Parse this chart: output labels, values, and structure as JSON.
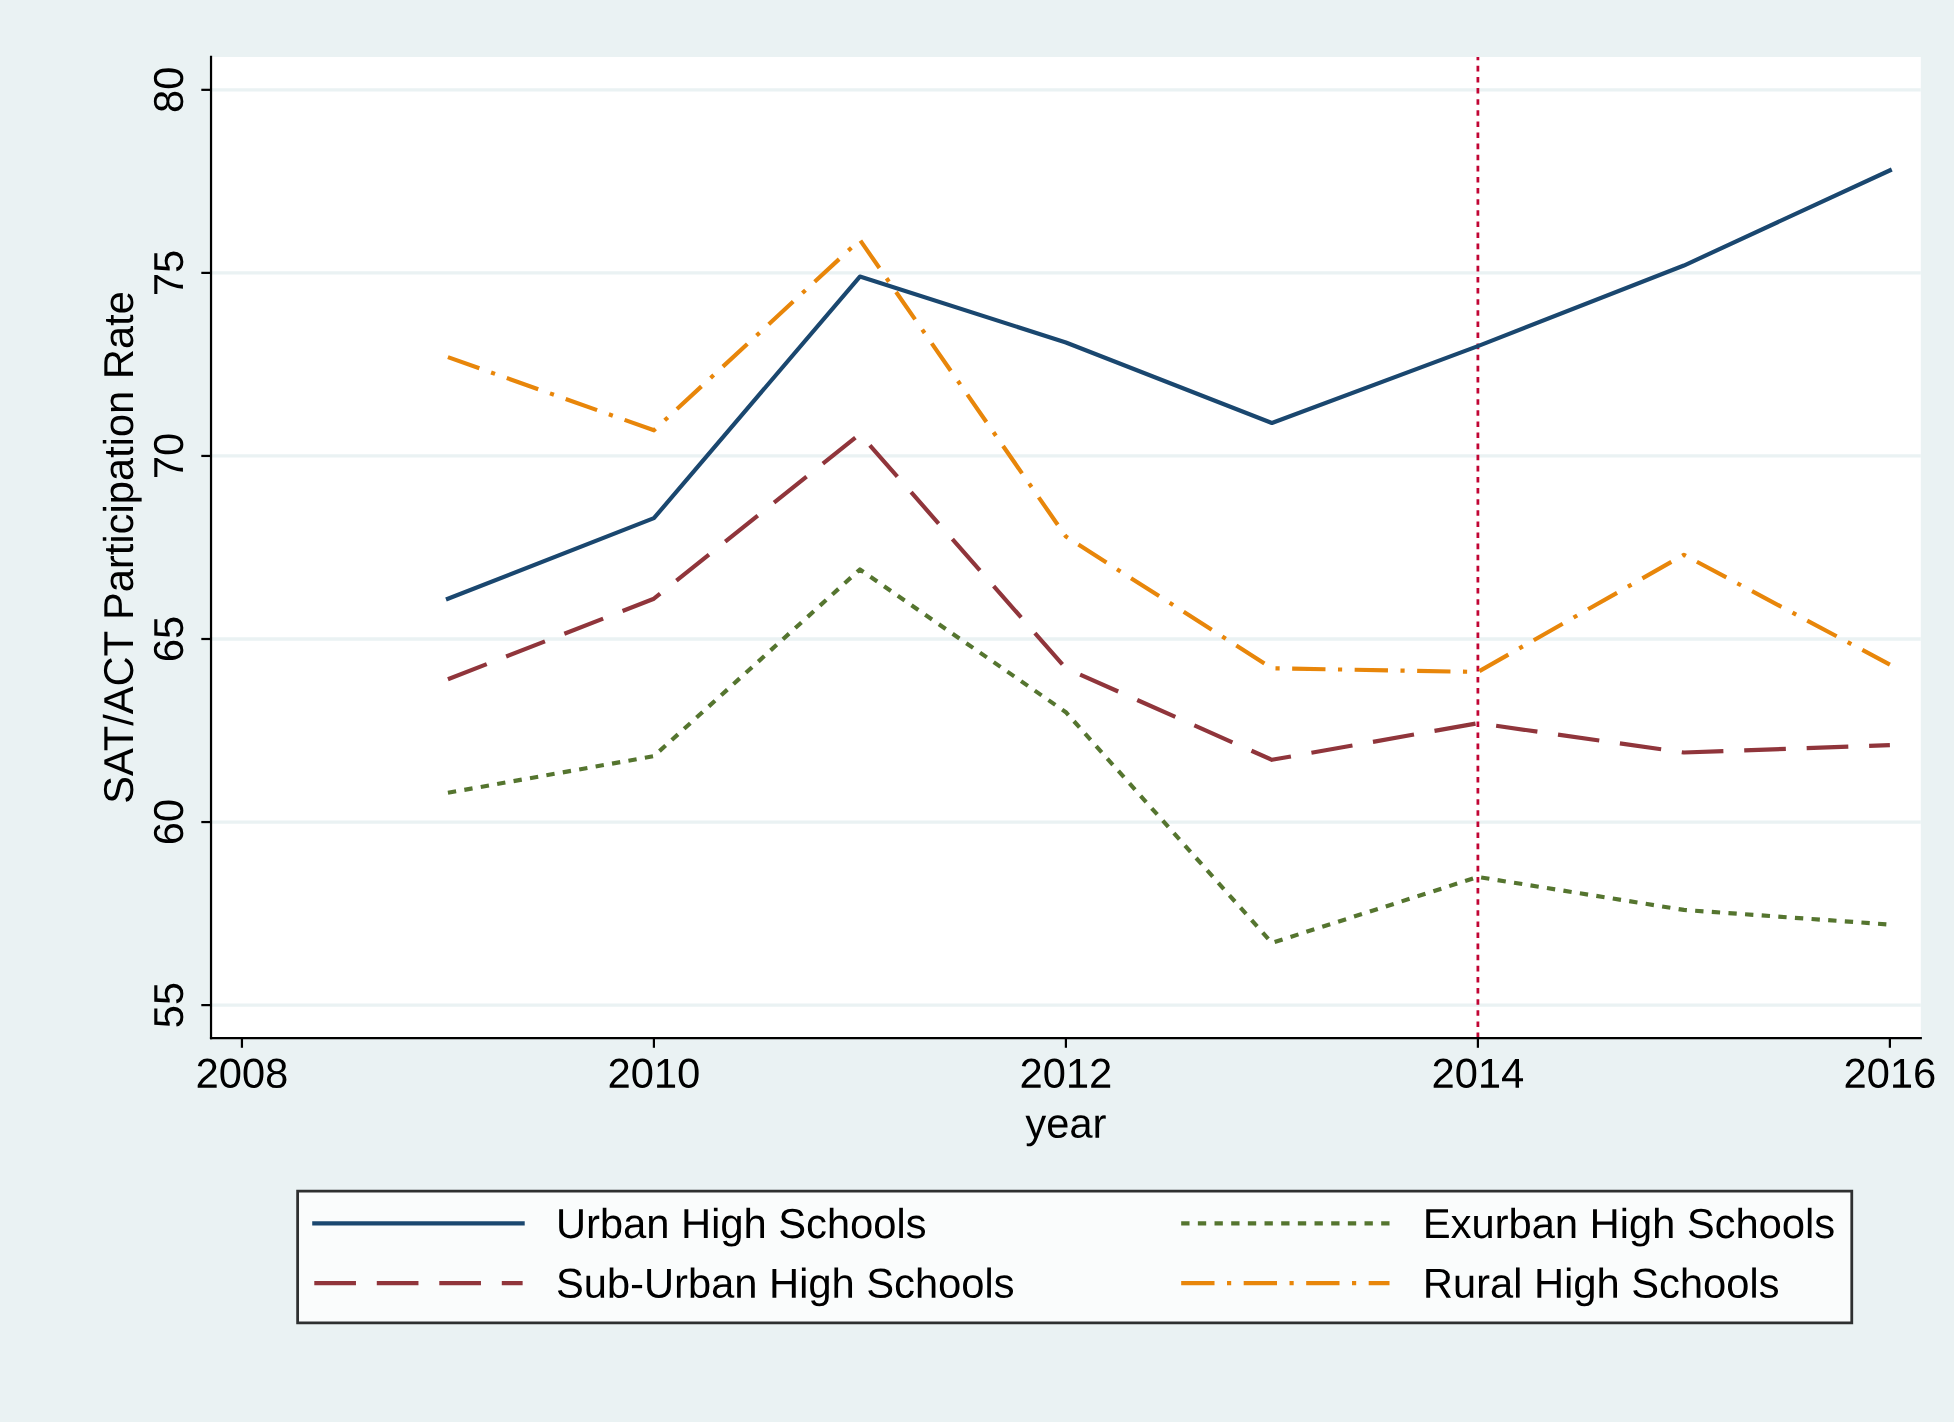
{
  "chart_data": {
    "type": "line",
    "xlabel": "year",
    "ylabel": "SAT/ACT Participation Rate",
    "x": [
      2009,
      2010,
      2011,
      2012,
      2013,
      2014,
      2015,
      2016
    ],
    "series": [
      {
        "name": "Urban High Schools",
        "color": "#1a476f",
        "line_style": "solid",
        "values": [
          66.1,
          68.3,
          74.9,
          73.1,
          70.9,
          73.0,
          75.2,
          77.8
        ]
      },
      {
        "name": "Sub-Urban High Schools",
        "color": "#90353b",
        "line_style": "dashed",
        "values": [
          63.9,
          66.1,
          70.6,
          64.2,
          61.7,
          62.7,
          61.9,
          62.1
        ]
      },
      {
        "name": "Exurban High Schools",
        "color": "#55752f",
        "line_style": "dotted",
        "values": [
          60.8,
          61.8,
          66.9,
          63.0,
          56.7,
          58.5,
          57.6,
          57.2
        ]
      },
      {
        "name": "Rural High Schools",
        "color": "#e8860a",
        "line_style": "dashdot",
        "values": [
          72.7,
          70.7,
          75.9,
          67.8,
          64.2,
          64.1,
          67.3,
          64.3
        ]
      }
    ],
    "xlim": [
      2007.85,
      2016.15
    ],
    "ylim": [
      54.1,
      80.9
    ],
    "xticks": [
      2008,
      2010,
      2012,
      2014,
      2016
    ],
    "yticks": [
      55,
      60,
      65,
      70,
      75,
      80
    ],
    "ref_lines": [
      {
        "axis": "x",
        "value": 2014,
        "color": "#c10534",
        "line_style": "dotted"
      }
    ],
    "grid": "y",
    "legend": "bottom",
    "marker": "none"
  }
}
